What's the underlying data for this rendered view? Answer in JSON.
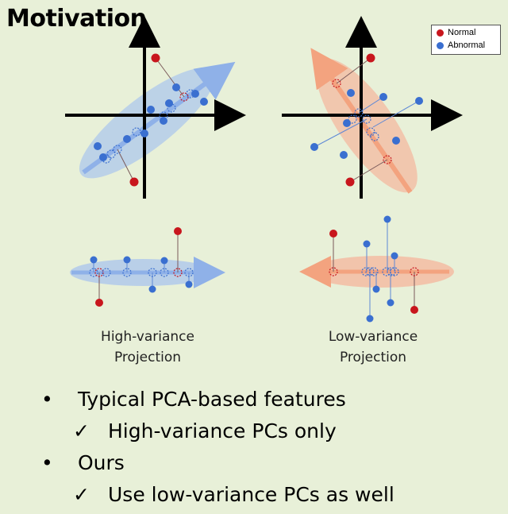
{
  "title": "Motivation",
  "legend": [
    {
      "label": "Normal",
      "color": "#c8161d"
    },
    {
      "label": "Abnormal",
      "color": "#3a6fd0"
    }
  ],
  "captions": {
    "high": [
      "High-variance",
      "Projection"
    ],
    "low": [
      "Low-variance",
      "Projection"
    ]
  },
  "bullets": [
    {
      "mark": "•",
      "text": "Typical PCA-based features"
    },
    {
      "mark": "✓",
      "text": "High-variance PCs only"
    },
    {
      "mark": "•",
      "text": "Ours"
    },
    {
      "mark": "✓",
      "text": "Use low-variance PCs as well"
    }
  ],
  "colors": {
    "background": "#e8f0d8",
    "normal": "#c8161d",
    "abnormal": "#3a6fd0",
    "high_variance": "#a9c4ee",
    "low_variance": "#f4b9a0"
  }
}
